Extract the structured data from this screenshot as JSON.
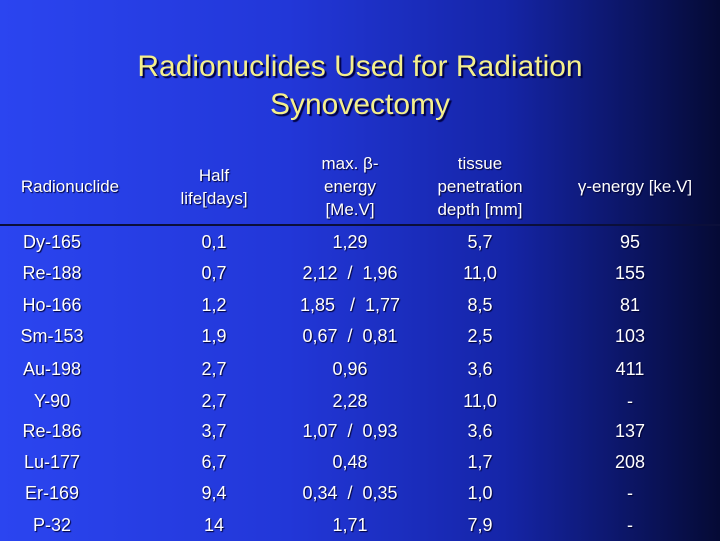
{
  "title": {
    "line1": "Radionuclides Used for Radiation",
    "line2": "Synovectomy"
  },
  "headers": {
    "nuclide": "Radionuclide",
    "half_life_1": "Half",
    "half_life_2": "life[days]",
    "beta_1": "max. β-",
    "beta_2": "energy",
    "beta_3": "[Me.V]",
    "tissue_1": "tissue",
    "tissue_2": "penetration",
    "tissue_3": "depth [mm]",
    "gamma": "γ-energy [ke.V]"
  },
  "rows": [
    {
      "nuclide": "Dy-165",
      "half_life": "0,1",
      "beta": "1,29",
      "tissue": "5,7",
      "gamma": "95"
    },
    {
      "nuclide": "Re-188",
      "half_life": "0,7",
      "beta": "2,12  /  1,96",
      "tissue": "11,0",
      "gamma": "155"
    },
    {
      "nuclide": "Ho-166",
      "half_life": "1,2",
      "beta": "1,85   /  1,77",
      "tissue": "8,5",
      "gamma": "81"
    },
    {
      "nuclide": "Sm-153",
      "half_life": "1,9",
      "beta": "0,67  /  0,81",
      "tissue": "2,5",
      "gamma": "103"
    },
    {
      "nuclide": "Au-198",
      "half_life": "2,7",
      "beta": "0,96",
      "tissue": "3,6",
      "gamma": "411"
    },
    {
      "nuclide": "Y-90",
      "half_life": "2,7",
      "beta": "2,28",
      "tissue": "11,0",
      "gamma": "-"
    },
    {
      "nuclide": "Re-186",
      "half_life": "3,7",
      "beta": "1,07  /  0,93",
      "tissue": "3,6",
      "gamma": "137"
    },
    {
      "nuclide": "Lu-177",
      "half_life": "6,7",
      "beta": "0,48",
      "tissue": "1,7",
      "gamma": "208"
    },
    {
      "nuclide": "Er-169",
      "half_life": "9,4",
      "beta": "0,34  /  0,35",
      "tissue": "1,0",
      "gamma": "-"
    },
    {
      "nuclide": "P-32",
      "half_life": "14",
      "beta": "1,71",
      "tissue": "7,9",
      "gamma": "-"
    }
  ]
}
